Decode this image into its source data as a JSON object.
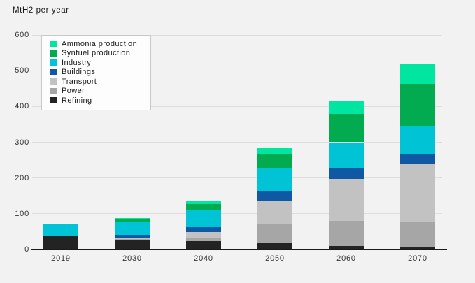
{
  "page": {
    "background_color": "#f2f2f2",
    "text_color": "#333333"
  },
  "chart_data": {
    "type": "bar",
    "stacked": true,
    "title": "MtH2 per year",
    "xlabel": "",
    "ylabel": "MtH2 per year",
    "categories": [
      "2019",
      "2030",
      "2040",
      "2050",
      "2060",
      "2070"
    ],
    "series": [
      {
        "name": "Refining",
        "color": "#232323",
        "values": [
          38,
          25,
          23,
          17,
          10,
          6
        ]
      },
      {
        "name": "Power",
        "color": "#a6a6a6",
        "values": [
          0,
          4,
          8,
          56,
          70,
          72
        ]
      },
      {
        "name": "Transport",
        "color": "#c2c2c2",
        "values": [
          0,
          5,
          18,
          62,
          118,
          161
        ]
      },
      {
        "name": "Buildings",
        "color": "#0f58a4",
        "values": [
          0,
          5,
          14,
          28,
          29,
          28
        ]
      },
      {
        "name": "Industry",
        "color": "#00c4d6",
        "values": [
          33,
          40,
          47,
          63,
          73,
          78
        ]
      },
      {
        "name": "Synfuel production",
        "color": "#02ab50",
        "values": [
          0,
          6,
          17,
          40,
          80,
          118
        ]
      },
      {
        "name": "Ammonia production",
        "color": "#00e5a0",
        "values": [
          0,
          2,
          10,
          18,
          35,
          55
        ]
      }
    ],
    "totals": [
      71,
      87,
      137,
      284,
      415,
      518
    ],
    "legend_order": [
      "Ammonia production",
      "Synfuel production",
      "Industry",
      "Buildings",
      "Transport",
      "Power",
      "Refining"
    ],
    "legend_position": "top-left",
    "ylim": [
      0,
      600
    ],
    "yticks": [
      0,
      100,
      200,
      300,
      400,
      500,
      600
    ],
    "grid": true,
    "gridline_color": "#ddddde",
    "axis_line_color": "#1a1a1a"
  }
}
